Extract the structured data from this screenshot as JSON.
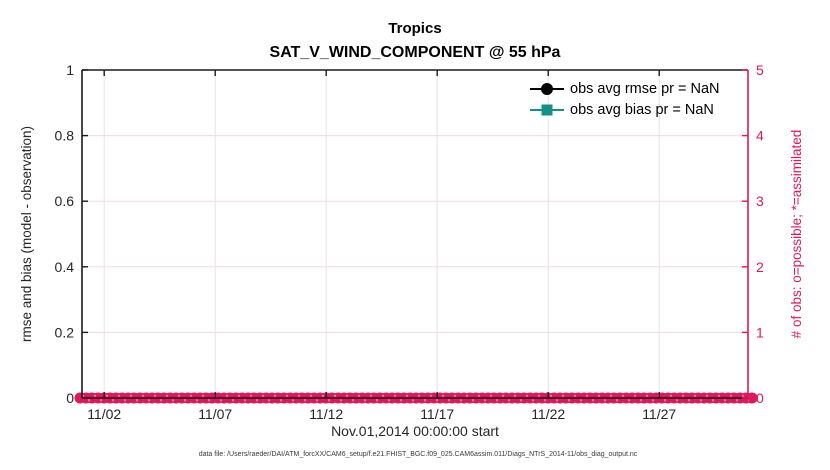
{
  "title": {
    "line1": "Tropics",
    "line2": "SAT_V_WIND_COMPONENT @ 55 hPa"
  },
  "chart_data": {
    "type": "line",
    "title": "Tropics",
    "subtitle": "SAT_V_WIND_COMPONENT @ 55 hPa",
    "xlabel": "Nov.01,2014 00:00:00 start",
    "x_axis": {
      "tick_labels": [
        "11/02",
        "11/07",
        "11/12",
        "11/17",
        "11/22",
        "11/27"
      ],
      "tick_days": [
        1,
        6,
        11,
        16,
        21,
        26
      ],
      "range_days": [
        0,
        30
      ],
      "start_label": "Nov.01,2014 00:00:00 start"
    },
    "left_axis": {
      "label": "rmse and bias (model - observation)",
      "tick_labels": [
        "0",
        "0.2",
        "0.4",
        "0.6",
        "0.8",
        "1"
      ],
      "tick_values": [
        0,
        0.2,
        0.4,
        0.6,
        0.8,
        1
      ],
      "range": [
        0,
        1
      ],
      "color": "#262626"
    },
    "right_axis": {
      "label": "# of obs: o=possible; *=assimilated",
      "tick_labels": [
        "0",
        "1",
        "2",
        "3",
        "4",
        "5"
      ],
      "tick_values": [
        0,
        1,
        2,
        3,
        4,
        5
      ],
      "range": [
        0,
        5
      ],
      "color": "#e0175c"
    },
    "series": [
      {
        "name": "obs avg rmse pr = NaN",
        "value": "NaN",
        "color": "#000000",
        "marker": "circle",
        "plotted_points": []
      },
      {
        "name": "obs avg bias pr = NaN",
        "value": "NaN",
        "color": "#149089",
        "marker": "square",
        "plotted_points": []
      }
    ],
    "obs_count_band": {
      "description": "o=possible and *=assimilated observation counts, all equal to 0 across the full time range",
      "y_value": 0,
      "x_extent_days": [
        0,
        30
      ],
      "color": "#e0175c",
      "speckle_color": "#f29ab8"
    },
    "grid": {
      "vertical_color": "#e4e4e4",
      "horizontal_color": "#f8d9e3",
      "horizontal_at_right_ticks": [
        1,
        2,
        3,
        4
      ]
    },
    "legend_position": "top-right-inside"
  },
  "legend": {
    "items": [
      {
        "label": "obs avg rmse pr = NaN",
        "color": "#000000",
        "marker": "circle"
      },
      {
        "label": "obs avg bias pr = NaN",
        "color": "#149089",
        "marker": "square"
      }
    ]
  },
  "caption": "data file: /Users/raeder/DAI/ATM_forcXX/CAM6_setup/f.e21.FHIST_BGC.f09_025.CAM6assim.011/Diags_NTrS_2014-11/obs_diag_output.nc",
  "colors": {
    "accent_pink": "#e0175c",
    "teal": "#149089",
    "axis_dark": "#1a1a1a",
    "text_dark": "#262626"
  }
}
